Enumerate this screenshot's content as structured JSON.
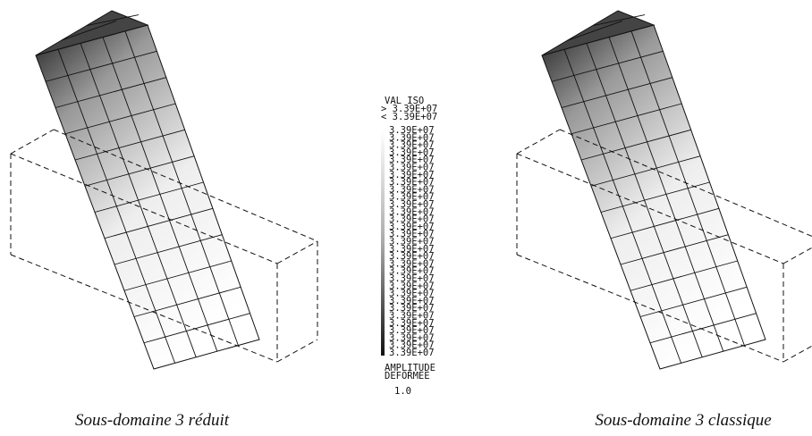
{
  "legend": {
    "header": "VAL   ISO",
    "above": "> 3.39E+07",
    "below": "< 3.39E+07",
    "levels": [
      "3.39E+07",
      "3.39E+07",
      "3.39E+07",
      "3.39E+07",
      "3.39E+07",
      "3.39E+07",
      "3.39E+07",
      "3.39E+07",
      "3.39E+07",
      "3.39E+07",
      "3.39E+07",
      "3.39E+07",
      "3.39E+07",
      "3.39E+07",
      "3.39E+07",
      "3.39E+07",
      "3.39E+07",
      "3.39E+07",
      "3.39E+07",
      "3.39E+07",
      "3.39E+07",
      "3.39E+07",
      "3.39E+07",
      "3.39E+07",
      "3.39E+07",
      "3.39E+07",
      "3.39E+07",
      "3.39E+07",
      "3.39E+07",
      "3.39E+07",
      "3.39E+07"
    ],
    "amplitude_title": [
      "AMPLITUDE",
      "DEFORMEE"
    ],
    "amplitude_value": "1.0"
  },
  "panels": [
    {
      "caption": "Sous-domaine 3 réduit"
    },
    {
      "caption": "Sous-domaine 3 classique"
    }
  ]
}
